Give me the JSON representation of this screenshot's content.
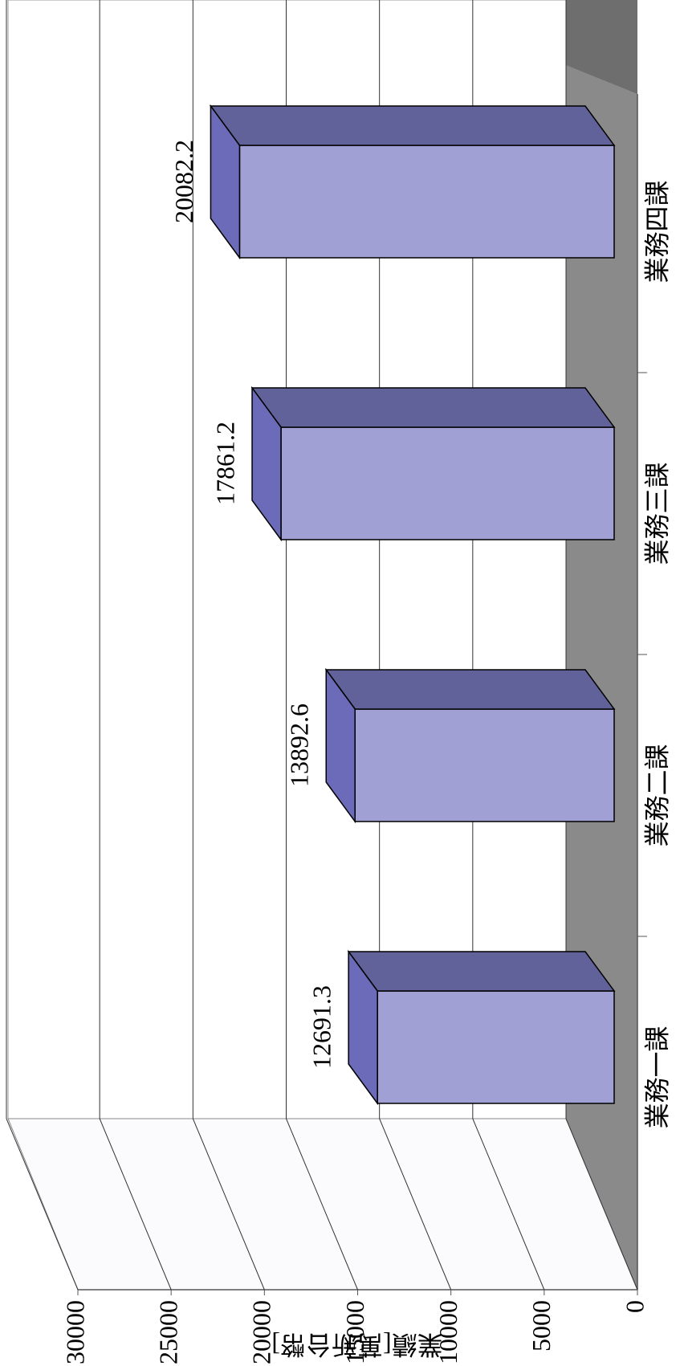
{
  "chart_data": {
    "type": "bar3d",
    "y_label": "業績[萬新台幣]",
    "categories": [
      "業務一課",
      "業務二課",
      "業務三課",
      "業務四課"
    ],
    "values": [
      12691.3,
      13892.6,
      17861.2,
      20082.2
    ],
    "color": "#a0a0d4",
    "ylim": [
      0,
      30000
    ],
    "yticks": [
      0,
      5000,
      10000,
      15000,
      20000,
      25000,
      30000
    ],
    "grid": true
  }
}
